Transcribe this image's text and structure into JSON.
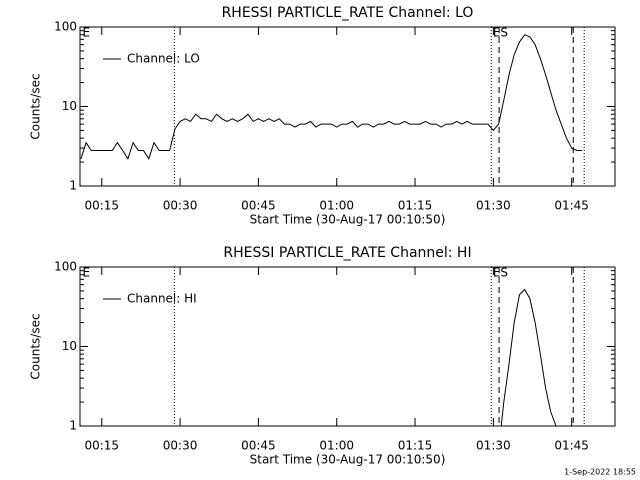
{
  "chart_data": [
    {
      "type": "line",
      "title": "RHESSI PARTICLE_RATE Channel: LO",
      "x_label": "Start Time (30-Aug-17 00:10:50)",
      "y_label": "Counts/sec",
      "log_y": true,
      "ylim": [
        1,
        100
      ],
      "yticks": [
        1,
        10,
        100
      ],
      "xlim": [
        10.83,
        113.3
      ],
      "xticks": [
        {
          "value": 15,
          "label": "00:15"
        },
        {
          "value": 30,
          "label": "00:30"
        },
        {
          "value": 45,
          "label": "00:45"
        },
        {
          "value": 60,
          "label": "01:00"
        },
        {
          "value": 75,
          "label": "01:15"
        },
        {
          "value": 90,
          "label": "01:30"
        },
        {
          "value": 105,
          "label": "01:45"
        }
      ],
      "legend": "top-left",
      "vlines": [
        {
          "x": 28.9,
          "style": "dotted"
        },
        {
          "x": 89.6,
          "style": "dotted"
        },
        {
          "x": 91.1,
          "style": "dashed"
        },
        {
          "x": 105.3,
          "style": "dashed"
        },
        {
          "x": 107.4,
          "style": "dotted"
        }
      ],
      "annotations": [
        {
          "text": "E",
          "x": 11.3
        },
        {
          "text": "ES",
          "x": 89.9
        }
      ],
      "series": [
        {
          "name": "Channel: LO",
          "color": "#000000",
          "x": [
            11,
            12,
            13,
            14,
            15,
            16,
            17,
            18,
            19,
            20,
            21,
            22,
            23,
            24,
            25,
            26,
            27,
            28,
            29,
            30,
            31,
            32,
            33,
            34,
            35,
            36,
            37,
            38,
            39,
            40,
            41,
            42,
            43,
            44,
            45,
            46,
            47,
            48,
            49,
            50,
            51,
            52,
            53,
            54,
            55,
            56,
            57,
            58,
            59,
            60,
            61,
            62,
            63,
            64,
            65,
            66,
            67,
            68,
            69,
            70,
            71,
            72,
            73,
            74,
            75,
            76,
            77,
            78,
            79,
            80,
            81,
            82,
            83,
            84,
            85,
            86,
            87,
            88,
            89,
            90,
            91,
            92,
            93,
            94,
            95,
            96,
            97,
            98,
            99,
            100,
            101,
            102,
            103,
            104,
            105,
            106,
            107
          ],
          "values": [
            2.2,
            3.5,
            2.8,
            2.8,
            2.8,
            2.8,
            2.8,
            3.5,
            2.8,
            2.2,
            3.5,
            2.8,
            2.8,
            2.2,
            3.5,
            2.8,
            2.8,
            2.8,
            5.2,
            6.5,
            7,
            6.5,
            8,
            7,
            7,
            6.5,
            8,
            7,
            6.5,
            7,
            6.5,
            7,
            8,
            6.5,
            7,
            6.5,
            7,
            6.5,
            7,
            6,
            6,
            5.5,
            6,
            6,
            6.5,
            5.5,
            6,
            6,
            6,
            5.5,
            6,
            6,
            6.5,
            5.5,
            6,
            6,
            5.5,
            6,
            6,
            6.5,
            6,
            6,
            6.5,
            6,
            6,
            6,
            6.5,
            6,
            6,
            5.5,
            6,
            6,
            6.5,
            6,
            6.5,
            6,
            6,
            6,
            6,
            5,
            6,
            12,
            25,
            45,
            65,
            80,
            75,
            60,
            40,
            25,
            15,
            9,
            6,
            4,
            3,
            2.8,
            2.8
          ]
        }
      ]
    },
    {
      "type": "line",
      "title": "RHESSI PARTICLE_RATE Channel: HI",
      "x_label": "Start Time (30-Aug-17 00:10:50)",
      "y_label": "Counts/sec",
      "log_y": true,
      "ylim": [
        1,
        100
      ],
      "yticks": [
        1,
        10,
        100
      ],
      "xlim": [
        10.83,
        113.3
      ],
      "xticks": [
        {
          "value": 15,
          "label": "00:15"
        },
        {
          "value": 30,
          "label": "00:30"
        },
        {
          "value": 45,
          "label": "00:45"
        },
        {
          "value": 60,
          "label": "01:00"
        },
        {
          "value": 75,
          "label": "01:15"
        },
        {
          "value": 90,
          "label": "01:30"
        },
        {
          "value": 105,
          "label": "01:45"
        }
      ],
      "legend": "top-left",
      "vlines": [
        {
          "x": 28.9,
          "style": "dotted"
        },
        {
          "x": 89.6,
          "style": "dotted"
        },
        {
          "x": 91.1,
          "style": "dashed"
        },
        {
          "x": 105.3,
          "style": "dashed"
        },
        {
          "x": 107.4,
          "style": "dotted"
        }
      ],
      "annotations": [
        {
          "text": "E",
          "x": 11.3
        },
        {
          "text": "ES",
          "x": 89.9
        }
      ],
      "series": [
        {
          "name": "Channel: HI",
          "color": "#000000",
          "x": [
            91.5,
            92,
            93,
            94,
            95,
            96,
            97,
            98,
            99,
            100,
            101,
            102
          ],
          "values": [
            1,
            2,
            6,
            20,
            45,
            52,
            40,
            20,
            8,
            3,
            1.5,
            1
          ]
        }
      ]
    }
  ],
  "footer": "1-Sep-2022 18:55"
}
